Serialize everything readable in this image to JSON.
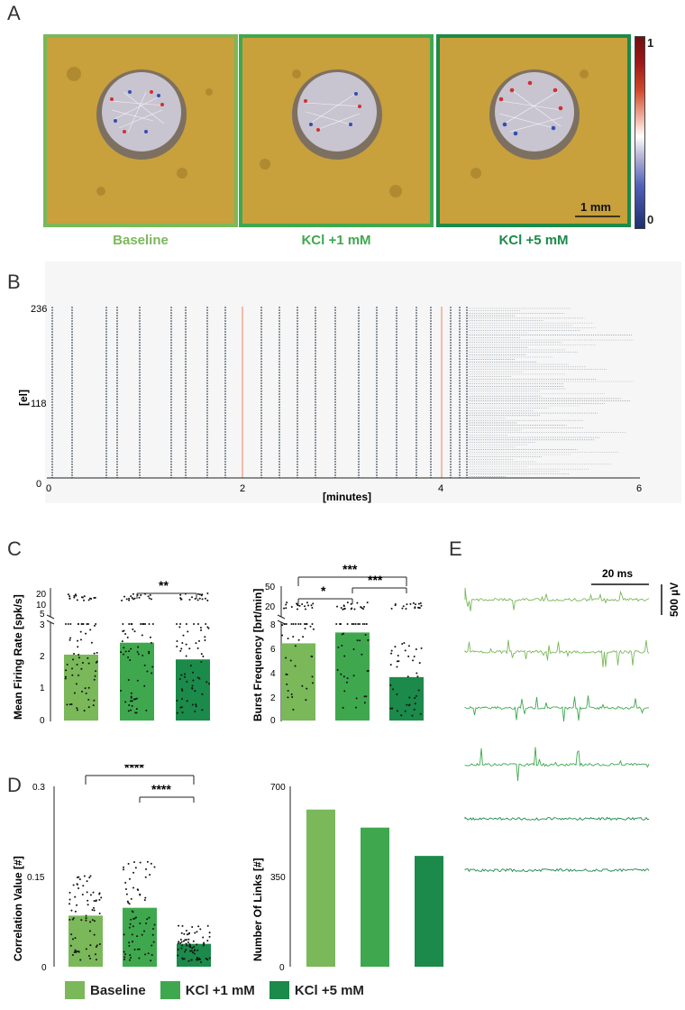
{
  "figure": {
    "panel_labels": [
      "A",
      "B",
      "C",
      "D",
      "E"
    ],
    "colors": {
      "baseline": "#7ab85a",
      "kcl1": "#3fa84f",
      "kcl5": "#1b8a4a",
      "raster_line": "#f08060"
    }
  },
  "panel_a": {
    "conditions": [
      "Baseline",
      "KCl +1 mM",
      "KCl +5 mM"
    ],
    "scale_bar": "1 mm",
    "colorbar_top": "1",
    "colorbar_bottom": "0"
  },
  "panel_b": {
    "y_ticks": [
      "236",
      "118",
      "0"
    ],
    "x_ticks": [
      "0",
      "2",
      "4",
      "6"
    ],
    "ylabel": "[el]",
    "xlabel": "[minutes]"
  },
  "panel_c": {
    "left": {
      "ylabel": "Mean Firing Rate [spk/s]",
      "upper_ticks": [
        "20",
        "10",
        "5"
      ],
      "lower_ticks": [
        "3",
        "2",
        "1",
        "0"
      ],
      "significance": [
        "**"
      ],
      "chart_data": {
        "type": "bar",
        "categories": [
          "Baseline",
          "KCl +1 mM",
          "KCl +5 mM"
        ],
        "values": [
          2.05,
          2.42,
          1.9
        ],
        "ylim": [
          0,
          3
        ]
      }
    },
    "right": {
      "ylabel": "Burst Frequency [brt/min]",
      "upper_ticks": [
        "50",
        "20"
      ],
      "lower_ticks": [
        "8",
        "6",
        "4",
        "2",
        "0"
      ],
      "significance": [
        "***",
        "*",
        "***"
      ],
      "chart_data": {
        "type": "bar",
        "categories": [
          "Baseline",
          "KCl +1 mM",
          "KCl +5 mM"
        ],
        "values": [
          6.4,
          7.3,
          3.6
        ],
        "ylim": [
          0,
          8
        ]
      }
    }
  },
  "panel_d": {
    "left": {
      "ylabel": "Correlation Value [#]",
      "ticks": [
        "0.3",
        "0.15",
        "0"
      ],
      "significance": [
        "****",
        "****"
      ],
      "chart_data": {
        "type": "bar",
        "categories": [
          "Baseline",
          "KCl +1 mM",
          "KCl +5 mM"
        ],
        "values": [
          0.085,
          0.098,
          0.038
        ],
        "ylim": [
          0,
          0.3
        ]
      }
    },
    "right": {
      "ylabel": "Number Of Links [#]",
      "ticks": [
        "700",
        "350",
        "0"
      ],
      "chart_data": {
        "type": "bar",
        "categories": [
          "Baseline",
          "KCl +1 mM",
          "KCl +5 mM"
        ],
        "values": [
          610,
          540,
          430
        ],
        "ylim": [
          0,
          700
        ]
      }
    }
  },
  "panel_e": {
    "time_scale": "20 ms",
    "voltage_scale": "500 µV"
  },
  "legend": [
    "Baseline",
    "KCl +1 mM",
    "KCl +5 mM"
  ]
}
